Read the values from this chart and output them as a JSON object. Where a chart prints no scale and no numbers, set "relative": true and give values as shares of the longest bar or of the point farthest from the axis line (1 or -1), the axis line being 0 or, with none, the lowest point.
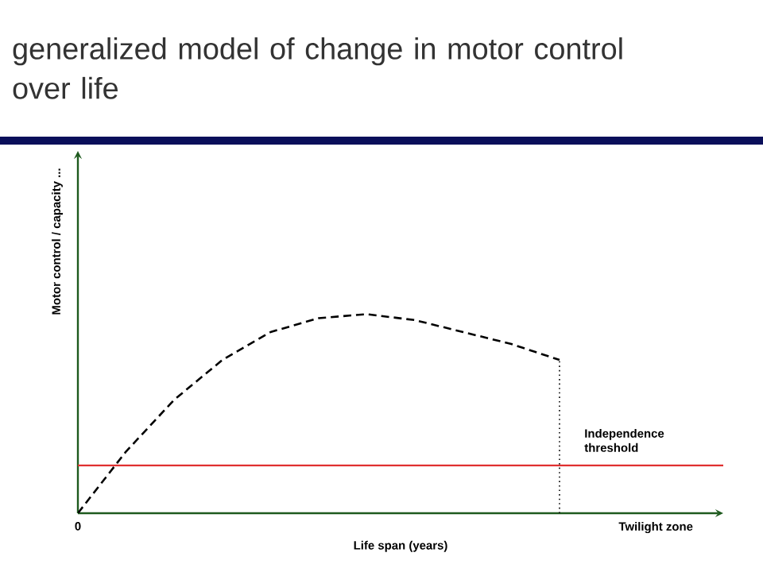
{
  "chart_data": {
    "type": "line",
    "title": "generalized model of change in motor control over life",
    "xlabel": "Life span (years)",
    "ylabel": "Motor control / capacity ...",
    "relative": true,
    "categories": [
      "0",
      null,
      null,
      null,
      null,
      null,
      null,
      null,
      null,
      null,
      null,
      null,
      "Twilight zone"
    ],
    "series": [
      {
        "values": [
          0,
          0.31,
          0.57,
          0.77,
          0.91,
          0.98,
          1,
          0.97,
          0.91,
          0.85,
          0.77,
          null,
          null
        ],
        "color": "#000000",
        "line_style": "dashed"
      }
    ],
    "ref_lines": [
      {
        "axis": "y",
        "value": 0.24,
        "label": "Independence threshold",
        "color": "#e03030"
      }
    ],
    "marker": "none"
  }
}
